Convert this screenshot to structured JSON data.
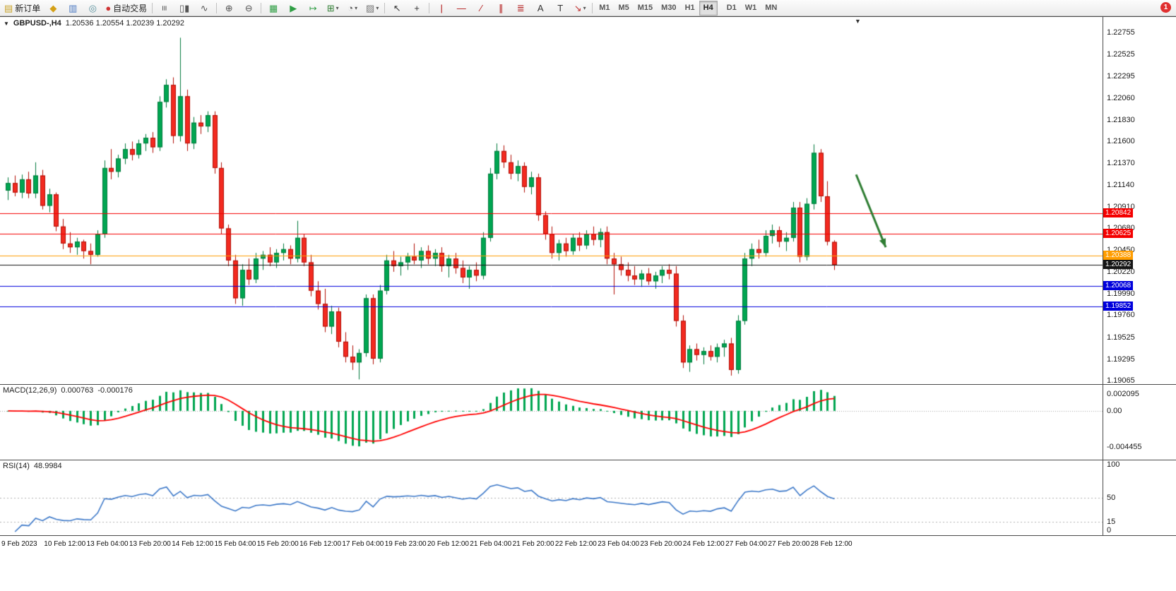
{
  "toolbar": {
    "notification_badge": "1",
    "items": [
      {
        "type": "button",
        "name": "new-order-button",
        "icon": "new-order-icon",
        "label": "新订单"
      },
      {
        "type": "button",
        "name": "market-watch-button",
        "icon": "market-watch-icon"
      },
      {
        "type": "button",
        "name": "data-window-button",
        "icon": "data-window-icon"
      },
      {
        "type": "button",
        "name": "navigator-button",
        "icon": "navigator-icon"
      },
      {
        "type": "button",
        "name": "auto-trading-button",
        "icon": "auto-trading-icon",
        "label": "自动交易"
      },
      {
        "type": "sep"
      },
      {
        "type": "button",
        "name": "bar-chart-button",
        "icon": "bar-chart-icon"
      },
      {
        "type": "button",
        "name": "candlestick-chart-button",
        "icon": "candlestick-chart-icon"
      },
      {
        "type": "button",
        "name": "line-chart-button",
        "icon": "line-chart-icon"
      },
      {
        "type": "sep"
      },
      {
        "type": "button",
        "name": "zoom-in-button",
        "icon": "zoom-in-icon"
      },
      {
        "type": "button",
        "name": "zoom-out-button",
        "icon": "zoom-out-icon"
      },
      {
        "type": "sep"
      },
      {
        "type": "button",
        "name": "tile-windows-button",
        "icon": "tile-windows-icon"
      },
      {
        "type": "button",
        "name": "auto-scroll-button",
        "icon": "auto-scroll-icon"
      },
      {
        "type": "button",
        "name": "chart-shift-button",
        "icon": "chart-shift-icon"
      },
      {
        "type": "dropdown",
        "name": "indicators-button",
        "icon": "indicators-icon"
      },
      {
        "type": "dropdown",
        "name": "periods-button",
        "icon": "clock-icon"
      },
      {
        "type": "dropdown",
        "name": "templates-button",
        "icon": "template-icon"
      },
      {
        "type": "sep"
      },
      {
        "type": "button",
        "name": "cursor-button",
        "icon": "cursor-icon"
      },
      {
        "type": "button",
        "name": "crosshair-button",
        "icon": "crosshair-icon"
      },
      {
        "type": "sep"
      },
      {
        "type": "button",
        "name": "vertical-line-button",
        "icon": "vertical-line-icon"
      },
      {
        "type": "button",
        "name": "horizontal-line-button",
        "icon": "horizontal-line-icon"
      },
      {
        "type": "button",
        "name": "trendline-button",
        "icon": "trendline-icon"
      },
      {
        "type": "button",
        "name": "channel-button",
        "icon": "channel-icon"
      },
      {
        "type": "button",
        "name": "fibonacci-button",
        "icon": "fibonacci-icon"
      },
      {
        "type": "button",
        "name": "text-button",
        "icon": "text-icon"
      },
      {
        "type": "button",
        "name": "label-button",
        "icon": "label-icon"
      },
      {
        "type": "dropdown",
        "name": "shapes-button",
        "icon": "arrows-icon"
      },
      {
        "type": "sep"
      }
    ],
    "timeframes": [
      "M1",
      "M5",
      "M15",
      "M30",
      "H1",
      "H4",
      "D1",
      "W1",
      "MN"
    ],
    "active_timeframe": "H4"
  },
  "chart_data": {
    "type": "candlestick",
    "symbol_label": "GBPUSD-,H4",
    "ohlc_text": "1.20536 1.20554 1.20239 1.20292",
    "timeframe": "H4",
    "price_range": {
      "top": 1.2292,
      "bottom": 1.1903
    },
    "price_axis_ticks": [
      "1.22755",
      "1.22525",
      "1.22295",
      "1.22060",
      "1.21830",
      "1.21600",
      "1.21370",
      "1.21140",
      "1.20910",
      "1.20680",
      "1.20450",
      "1.20220",
      "1.19990",
      "1.19760",
      "1.19525",
      "1.19295",
      "1.19065"
    ],
    "levels": [
      {
        "name": "resistance-line-1",
        "price": 1.20842,
        "label": "1.20842",
        "color": "#f40000"
      },
      {
        "name": "resistance-line-2",
        "price": 1.20625,
        "label": "1.20625",
        "color": "#f40000"
      },
      {
        "name": "pivot-line",
        "price": 1.20388,
        "label": "1.20388",
        "color": "#ff9d00"
      },
      {
        "name": "bid-price-line",
        "price": 1.20292,
        "label": "1.20292",
        "color": "#151515"
      },
      {
        "name": "support-line-1",
        "price": 1.20068,
        "label": "1.20068",
        "color": "#0000dc"
      },
      {
        "name": "support-line-2",
        "price": 1.19852,
        "label": "1.19852",
        "color": "#0000dc"
      }
    ],
    "arrow_annotation": {
      "from_index": 123.5,
      "from_price": 1.2125,
      "to_index": 127.8,
      "to_price": 1.2048,
      "color": "#2e7d32"
    },
    "colors": {
      "up": "#00a651",
      "up_border": "#00война7a3c",
      "down": "#f32a20",
      "down_border": "#b00f06",
      "background": "#ffffff"
    },
    "candles": [
      [
        1.2108,
        1.2122,
        1.2098,
        1.2116
      ],
      [
        1.2116,
        1.2124,
        1.2102,
        1.2106
      ],
      [
        1.2106,
        1.2125,
        1.21,
        1.212
      ],
      [
        1.212,
        1.2128,
        1.21,
        1.2105
      ],
      [
        1.2105,
        1.2138,
        1.21,
        1.2124
      ],
      [
        1.2124,
        1.213,
        1.2088,
        1.2092
      ],
      [
        1.2092,
        1.211,
        1.2085,
        1.2104
      ],
      [
        1.2104,
        1.2106,
        1.2065,
        1.207
      ],
      [
        1.207,
        1.2078,
        1.2046,
        1.2052
      ],
      [
        1.2052,
        1.2064,
        1.2042,
        1.2048
      ],
      [
        1.2048,
        1.2058,
        1.204,
        1.2054
      ],
      [
        1.2054,
        1.2056,
        1.2036,
        1.2044
      ],
      [
        1.2044,
        1.2052,
        1.203,
        1.204
      ],
      [
        1.204,
        1.2066,
        1.2038,
        1.2062
      ],
      [
        1.2062,
        1.214,
        1.2058,
        1.2132
      ],
      [
        1.2132,
        1.2152,
        1.212,
        1.2128
      ],
      [
        1.2128,
        1.2146,
        1.2122,
        1.2142
      ],
      [
        1.2142,
        1.2158,
        1.2136,
        1.2152
      ],
      [
        1.2152,
        1.216,
        1.214,
        1.2146
      ],
      [
        1.2146,
        1.2162,
        1.2142,
        1.2158
      ],
      [
        1.2158,
        1.2168,
        1.215,
        1.2164
      ],
      [
        1.2164,
        1.217,
        1.2148,
        1.2154
      ],
      [
        1.2154,
        1.2208,
        1.215,
        1.2202
      ],
      [
        1.2202,
        1.2226,
        1.2196,
        1.222
      ],
      [
        1.222,
        1.2228,
        1.2158,
        1.2166
      ],
      [
        1.2166,
        1.227,
        1.216,
        1.2208
      ],
      [
        1.2208,
        1.2215,
        1.215,
        1.2158
      ],
      [
        1.2158,
        1.2186,
        1.2152,
        1.218
      ],
      [
        1.218,
        1.2188,
        1.2168,
        1.2176
      ],
      [
        1.2176,
        1.2192,
        1.217,
        1.2188
      ],
      [
        1.2188,
        1.2192,
        1.2126,
        1.2132
      ],
      [
        1.2132,
        1.2138,
        1.2062,
        1.2068
      ],
      [
        1.2068,
        1.2072,
        1.2028,
        1.2034
      ],
      [
        1.2034,
        1.204,
        1.1988,
        1.1994
      ],
      [
        1.1994,
        1.203,
        1.1986,
        1.2024
      ],
      [
        1.2024,
        1.2036,
        1.2008,
        1.2014
      ],
      [
        1.2014,
        1.2042,
        1.201,
        1.2036
      ],
      [
        1.2036,
        1.2044,
        1.2024,
        1.204
      ],
      [
        1.204,
        1.2048,
        1.2028,
        1.2032
      ],
      [
        1.2032,
        1.2046,
        1.2026,
        1.2042
      ],
      [
        1.2042,
        1.2052,
        1.2034,
        1.2046
      ],
      [
        1.2046,
        1.205,
        1.203,
        1.2036
      ],
      [
        1.2036,
        1.2076,
        1.2032,
        1.2058
      ],
      [
        1.2058,
        1.2062,
        1.2028,
        1.2032
      ],
      [
        1.2032,
        1.204,
        1.1996,
        1.2002
      ],
      [
        1.2002,
        1.2012,
        1.1982,
        1.1988
      ],
      [
        1.1988,
        1.2004,
        1.1958,
        1.1964
      ],
      [
        1.1964,
        1.1986,
        1.1956,
        1.198
      ],
      [
        1.198,
        1.1984,
        1.1942,
        1.1948
      ],
      [
        1.1948,
        1.1958,
        1.1926,
        1.1932
      ],
      [
        1.1932,
        1.1944,
        1.1918,
        1.1926
      ],
      [
        1.1926,
        1.194,
        1.1908,
        1.1936
      ],
      [
        1.1936,
        1.1998,
        1.1932,
        1.1994
      ],
      [
        1.1994,
        1.1998,
        1.1924,
        1.193
      ],
      [
        1.193,
        1.2008,
        1.1926,
        1.2002
      ],
      [
        1.2002,
        1.204,
        1.1998,
        1.2034
      ],
      [
        1.2034,
        1.2044,
        1.2022,
        1.2028
      ],
      [
        1.2028,
        1.2038,
        1.2018,
        1.2032
      ],
      [
        1.2032,
        1.2042,
        1.2024,
        1.2038
      ],
      [
        1.2038,
        1.2052,
        1.203,
        1.2034
      ],
      [
        1.2034,
        1.2048,
        1.2026,
        1.2044
      ],
      [
        1.2044,
        1.205,
        1.203,
        1.2036
      ],
      [
        1.2036,
        1.2046,
        1.2028,
        1.2042
      ],
      [
        1.2042,
        1.2048,
        1.2022,
        1.2028
      ],
      [
        1.2028,
        1.204,
        1.2016,
        1.2036
      ],
      [
        1.2036,
        1.2042,
        1.202,
        1.2026
      ],
      [
        1.2026,
        1.2034,
        1.201,
        1.2016
      ],
      [
        1.2016,
        1.2028,
        1.2004,
        1.2024
      ],
      [
        1.2024,
        1.2032,
        1.2012,
        1.2018
      ],
      [
        1.2018,
        1.2064,
        1.2014,
        1.2058
      ],
      [
        1.2058,
        1.2132,
        1.2054,
        1.2126
      ],
      [
        1.2126,
        1.2158,
        1.212,
        1.215
      ],
      [
        1.215,
        1.2156,
        1.2132,
        1.2138
      ],
      [
        1.2138,
        1.2146,
        1.212,
        1.2126
      ],
      [
        1.2126,
        1.214,
        1.2118,
        1.2134
      ],
      [
        1.2134,
        1.2138,
        1.2106,
        1.2112
      ],
      [
        1.2112,
        1.2128,
        1.2104,
        1.2122
      ],
      [
        1.2122,
        1.2126,
        1.2076,
        1.2082
      ],
      [
        1.2082,
        1.2086,
        1.2056,
        1.2062
      ],
      [
        1.2062,
        1.207,
        1.2036,
        1.2042
      ],
      [
        1.2042,
        1.2056,
        1.2034,
        1.2052
      ],
      [
        1.2052,
        1.2058,
        1.2038,
        1.2044
      ],
      [
        1.2044,
        1.2062,
        1.204,
        1.2058
      ],
      [
        1.2058,
        1.2064,
        1.2044,
        1.205
      ],
      [
        1.205,
        1.2066,
        1.2046,
        1.2062
      ],
      [
        1.2062,
        1.207,
        1.205,
        1.2056
      ],
      [
        1.2056,
        1.2068,
        1.2048,
        1.2064
      ],
      [
        1.2064,
        1.207,
        1.203,
        1.2036
      ],
      [
        1.2036,
        1.2042,
        1.1998,
        1.203
      ],
      [
        1.203,
        1.2038,
        1.2018,
        1.2024
      ],
      [
        1.2024,
        1.2032,
        1.2012,
        1.2018
      ],
      [
        1.2018,
        1.2028,
        1.2008,
        1.2014
      ],
      [
        1.2014,
        1.2024,
        1.2006,
        1.202
      ],
      [
        1.202,
        1.2026,
        1.2008,
        1.2012
      ],
      [
        1.2012,
        1.2022,
        1.2004,
        1.2018
      ],
      [
        1.2018,
        1.2028,
        1.201,
        1.2024
      ],
      [
        1.2024,
        1.203,
        1.2014,
        1.202
      ],
      [
        1.202,
        1.2028,
        1.1964,
        1.197
      ],
      [
        1.197,
        1.1976,
        1.192,
        1.1926
      ],
      [
        1.1926,
        1.1944,
        1.1916,
        1.194
      ],
      [
        1.194,
        1.1946,
        1.1928,
        1.1934
      ],
      [
        1.1934,
        1.1942,
        1.1924,
        1.1938
      ],
      [
        1.1938,
        1.1944,
        1.1928,
        1.1932
      ],
      [
        1.1932,
        1.1946,
        1.1926,
        1.1942
      ],
      [
        1.1942,
        1.195,
        1.1932,
        1.1946
      ],
      [
        1.1946,
        1.1952,
        1.1912,
        1.1918
      ],
      [
        1.1918,
        1.1976,
        1.1914,
        1.197
      ],
      [
        1.197,
        1.2042,
        1.1966,
        1.2036
      ],
      [
        1.2036,
        1.2052,
        1.2028,
        1.2046
      ],
      [
        1.2046,
        1.2056,
        1.2036,
        1.2042
      ],
      [
        1.2042,
        1.2066,
        1.2038,
        1.206
      ],
      [
        1.206,
        1.2072,
        1.2052,
        1.2066
      ],
      [
        1.2066,
        1.207,
        1.2048,
        1.2054
      ],
      [
        1.2054,
        1.2064,
        1.2044,
        1.2058
      ],
      [
        1.2058,
        1.2096,
        1.2054,
        1.209
      ],
      [
        1.209,
        1.2096,
        1.2032,
        1.2038
      ],
      [
        1.2038,
        1.21,
        1.2034,
        1.2094
      ],
      [
        1.2094,
        1.2157,
        1.2088,
        1.2148
      ],
      [
        1.2148,
        1.2152,
        1.2096,
        1.2102
      ],
      [
        1.2102,
        1.2118,
        1.205,
        1.2054
      ],
      [
        1.20536,
        1.20554,
        1.20239,
        1.20292
      ]
    ],
    "macd": {
      "label": "MACD(12,26,9)",
      "value_main": "0.000763",
      "value_signal": "-0.000176",
      "axis_ticks": [
        "0.002095",
        "0.00",
        "-0.004455"
      ],
      "range": {
        "top": 0.0032,
        "bottom": -0.006
      },
      "histogram_color": "#00a651",
      "signal_color": "#ff0000"
    },
    "rsi": {
      "label": "RSI(14)",
      "value": "48.9984",
      "axis_ticks": [
        "100",
        "50",
        "15",
        "0"
      ],
      "dashed_levels": [
        50,
        15
      ],
      "line_color": "#3c78c8"
    },
    "date_axis_labels": [
      "9 Feb 2023",
      "10 Feb 12:00",
      "13 Feb 04:00",
      "13 Feb 20:00",
      "14 Feb 12:00",
      "15 Feb 04:00",
      "15 Feb 20:00",
      "16 Feb 12:00",
      "17 Feb 04:00",
      "19 Feb 23:00",
      "20 Feb 12:00",
      "21 Feb 04:00",
      "21 Feb 20:00",
      "22 Feb 12:00",
      "23 Feb 04:00",
      "23 Feb 20:00",
      "24 Feb 12:00",
      "27 Feb 04:00",
      "27 Feb 20:00",
      "28 Feb 12:00"
    ]
  }
}
